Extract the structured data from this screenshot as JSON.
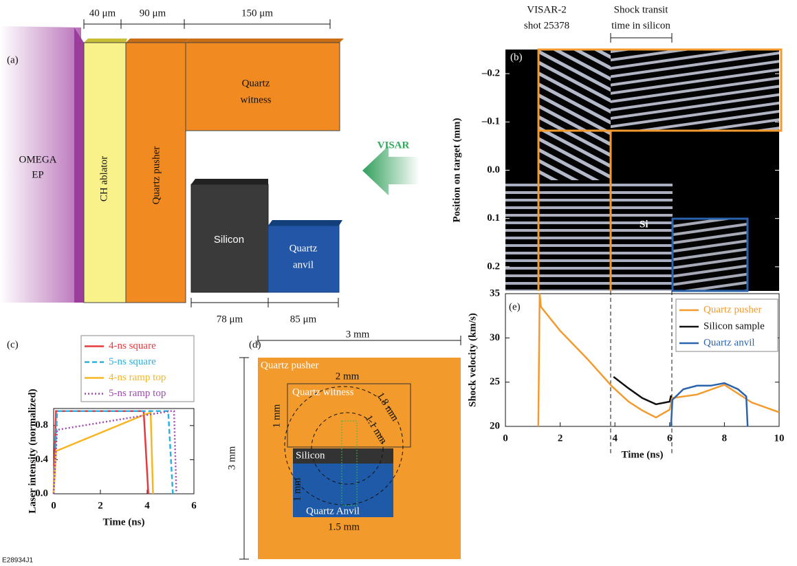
{
  "panel_a": {
    "label": "(a)",
    "dimensions_top": [
      "40 μm",
      "90 μm",
      "150 μm"
    ],
    "dimensions_bottom": [
      "78 μm",
      "85 μm"
    ],
    "laser": [
      "OMEGA",
      "EP"
    ],
    "ablator": "CH ablator",
    "pusher": "Quartz pusher",
    "witness": [
      "Quartz",
      "witness"
    ],
    "silicon": "Silicon",
    "anvil": [
      "Quartz",
      "anvil"
    ],
    "probe": "VISAR"
  },
  "panel_d": {
    "label": "(d)",
    "width": "3 mm",
    "height": "3 mm",
    "pusher": "Quartz pusher",
    "witness_width": "2 mm",
    "witness": "Quartz witness",
    "witness_height": "1 mm",
    "outer_circle": "1.8 mm",
    "inner_circle": "1.1 mm",
    "silicon": "Silicon",
    "anvil_height": "1 mm",
    "anvil": "Quartz Anvil",
    "anvil_width": "1.5 mm"
  },
  "figure_id": "E28934J1",
  "chart_data": [
    {
      "type": "image",
      "panel_label": "(b)",
      "title": [
        "VISAR-2",
        "shot 25378"
      ],
      "annotation": [
        "Shock transit",
        "time in silicon"
      ],
      "region_label": "Si",
      "ylabel": "Position on target (mm)",
      "ylim": [
        -0.25,
        0.25
      ],
      "y_inverted": true,
      "yticks": [
        {
          "value": -0.2,
          "label": "–0.2"
        },
        {
          "value": -0.1,
          "label": "–0.1"
        },
        {
          "value": 0,
          "label": "0.0"
        },
        {
          "value": 0.1,
          "label": "0.1"
        },
        {
          "value": 0.2,
          "label": "0.2"
        }
      ]
    },
    {
      "type": "line",
      "panel_label": "(c)",
      "xlabel": "Time (ns)",
      "ylabel": "Laser intensity (normalized)",
      "xlim": [
        0,
        6
      ],
      "ylim": [
        0,
        1
      ],
      "xticks": [
        0,
        2,
        4,
        6
      ],
      "yticks": [
        {
          "value": 0,
          "label": "0.0"
        },
        {
          "value": 0.4,
          "label": "0.4"
        },
        {
          "value": 0.8,
          "label": "0.8"
        }
      ],
      "legend": "above",
      "series": [
        {
          "name": "4-ns square",
          "color": "#e8383d",
          "dash": "solid",
          "x": [
            0,
            0.1,
            3.85,
            4.05
          ],
          "values": [
            0,
            0.97,
            0.97,
            0
          ]
        },
        {
          "name": "5-ns square",
          "color": "#2bb0e0",
          "dash": "dashed",
          "x": [
            0,
            0.15,
            4.9,
            5.1
          ],
          "values": [
            0,
            0.97,
            0.97,
            0
          ]
        },
        {
          "name": "4-ns ramp top",
          "color": "#f7b520",
          "dash": "solid",
          "x": [
            0,
            0.1,
            3.9,
            4.15,
            4.25
          ],
          "values": [
            0,
            0.5,
            0.93,
            0.95,
            0
          ]
        },
        {
          "name": "5-ns ramp top",
          "color": "#a04ab0",
          "dash": "dotted",
          "x": [
            0,
            0.15,
            5.0,
            5.15,
            5.25
          ],
          "values": [
            0,
            0.75,
            0.97,
            0.97,
            0
          ]
        }
      ]
    },
    {
      "type": "line",
      "panel_label": "(e)",
      "xlabel": "Time (ns)",
      "ylabel": "Shock velocity (km/s)",
      "xlim": [
        0,
        10
      ],
      "ylim": [
        20,
        35
      ],
      "xticks": [
        0,
        2,
        4,
        6,
        8,
        10
      ],
      "yticks": [
        20,
        25,
        30,
        35
      ],
      "legend": "upper right",
      "series": [
        {
          "name": "Quartz pusher",
          "color": "#f39a2c",
          "dash": "solid",
          "x": [
            1.2,
            1.25,
            1.3,
            2,
            3,
            3.9,
            4.5,
            5,
            5.5,
            6,
            6.1,
            7,
            8,
            9,
            10
          ],
          "values": [
            20,
            35,
            33.5,
            30.8,
            27.6,
            24.5,
            22.8,
            21.8,
            21.0,
            21.9,
            23.2,
            23.6,
            24.7,
            22.7,
            21.6
          ]
        },
        {
          "name": "Silicon sample",
          "color": "#111111",
          "dash": "solid",
          "x": [
            3.95,
            4.5,
            5,
            5.5,
            6,
            6.05
          ],
          "values": [
            25.6,
            24.3,
            23.2,
            22.5,
            22.8,
            23.5
          ]
        },
        {
          "name": "Quartz anvil",
          "color": "#2a63ad",
          "dash": "solid",
          "x": [
            6.05,
            6.1,
            6.5,
            7,
            7.5,
            8,
            8.5,
            8.8,
            8.85
          ],
          "values": [
            20,
            23,
            24.2,
            24.6,
            24.6,
            24.9,
            24.2,
            23.4,
            20
          ]
        }
      ]
    }
  ]
}
